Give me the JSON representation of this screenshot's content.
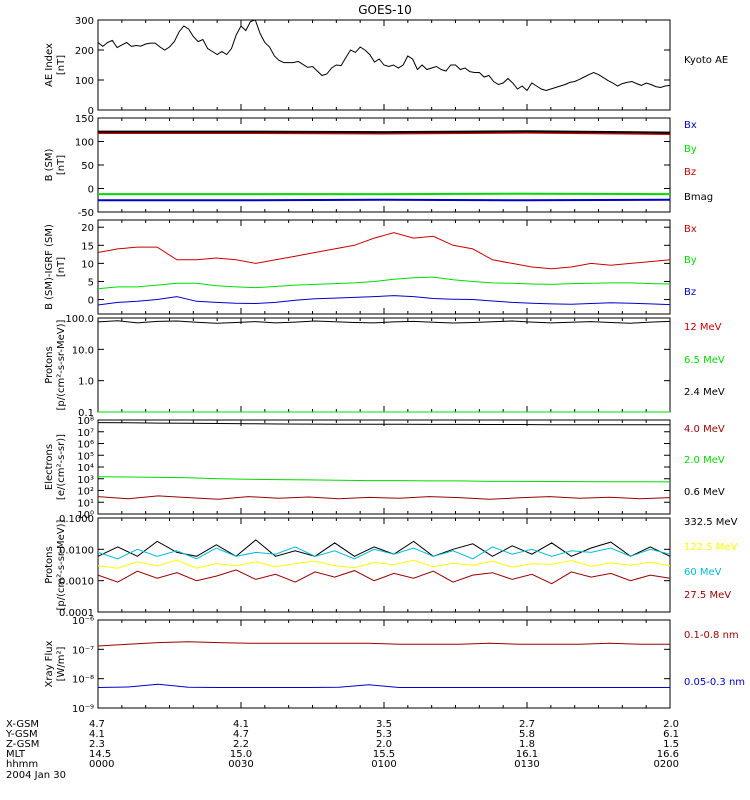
{
  "title": "GOES-10",
  "colors": {
    "black": "#000000",
    "red": "#cc0000",
    "darkred": "#990000",
    "green": "#00dd00",
    "blue": "#0000cc",
    "navy": "#0000aa",
    "yellow": "#ffff00",
    "cyan": "#00bbdd"
  },
  "footer": {
    "rows": [
      {
        "label": "X-GSM",
        "values": [
          "4.7",
          "4.1",
          "3.5",
          "2.7",
          "2.0"
        ]
      },
      {
        "label": "Y-GSM",
        "values": [
          "4.1",
          "4.7",
          "5.3",
          "5.8",
          "6.1"
        ]
      },
      {
        "label": "Z-GSM",
        "values": [
          "2.3",
          "2.2",
          "2.0",
          "1.8",
          "1.5"
        ]
      },
      {
        "label": "MLT",
        "values": [
          "14.5",
          "15.0",
          "15.5",
          "16.1",
          "16.6"
        ]
      },
      {
        "label": "hhmm",
        "values": [
          "0000",
          "0030",
          "0100",
          "0130",
          "0200"
        ]
      }
    ],
    "date": "2004 Jan 30"
  },
  "chart_data": [
    {
      "type": "line",
      "id": "ae",
      "ylabel_lines": [
        "AE Index",
        "[nT]"
      ],
      "ylim": [
        0,
        300
      ],
      "log": false,
      "yticks": [
        0,
        100,
        200,
        300
      ],
      "ytick_labels": [
        "0",
        "100",
        "200",
        "300"
      ],
      "x_range": [
        0,
        120
      ],
      "series": [
        {
          "name": "Kyoto AE",
          "color": "black",
          "values": [
            225,
            212,
            225,
            232,
            208,
            217,
            225,
            212,
            215,
            213,
            220,
            223,
            223,
            210,
            200,
            210,
            228,
            260,
            280,
            270,
            245,
            228,
            235,
            205,
            195,
            185,
            195,
            185,
            205,
            250,
            280,
            265,
            295,
            300,
            255,
            225,
            210,
            180,
            165,
            158,
            158,
            158,
            162,
            152,
            142,
            145,
            130,
            115,
            120,
            140,
            150,
            148,
            175,
            200,
            192,
            210,
            200,
            185,
            160,
            170,
            150,
            145,
            150,
            140,
            150,
            180,
            170,
            135,
            150,
            135,
            140,
            145,
            135,
            130,
            150,
            150,
            135,
            140,
            128,
            125,
            125,
            110,
            115,
            95,
            85,
            90,
            105,
            90,
            70,
            80,
            65,
            90,
            80,
            70,
            65,
            70,
            75,
            80,
            85,
            92,
            95,
            102,
            110,
            118,
            125,
            118,
            108,
            98,
            90,
            80,
            88,
            92,
            95,
            88,
            82,
            90,
            85,
            78,
            75,
            80,
            82
          ]
        }
      ]
    },
    {
      "type": "line",
      "id": "b-sm",
      "ylabel_lines": [
        "B (SM)",
        "[nT]"
      ],
      "ylim": [
        -50,
        150
      ],
      "log": false,
      "yticks": [
        -50,
        0,
        50,
        100,
        150
      ],
      "ytick_labels": [
        "-50",
        "0",
        "50",
        "100",
        "150"
      ],
      "x_range": [
        0,
        120
      ],
      "series": [
        {
          "name": "Bx",
          "color": "blue",
          "values": [
            -25,
            -25,
            -24,
            -25,
            -24
          ]
        },
        {
          "name": "By",
          "color": "green",
          "values": [
            -12,
            -12,
            -12,
            -11,
            -12
          ]
        },
        {
          "name": "Bz",
          "color": "red",
          "values": [
            118,
            118,
            117,
            119,
            116
          ]
        },
        {
          "name": "Bmag",
          "color": "black",
          "values": [
            121,
            121,
            120,
            122,
            119
          ]
        }
      ]
    },
    {
      "type": "line",
      "id": "b-sm-igrf",
      "ylabel_lines": [
        "B (SM)-IGRF (SM)",
        "[nT]"
      ],
      "ylim": [
        -4,
        22
      ],
      "log": false,
      "yticks": [
        0,
        5,
        10,
        15,
        20
      ],
      "ytick_labels": [
        "0",
        "5",
        "10",
        "15",
        "20"
      ],
      "x_range": [
        0,
        120
      ],
      "series": [
        {
          "name": "Bx",
          "color": "red",
          "values": [
            13,
            14,
            14.5,
            14.5,
            11,
            11,
            11.5,
            11,
            10,
            11,
            12,
            13,
            14,
            15,
            17,
            18.5,
            17,
            17.5,
            15,
            14,
            11,
            10,
            9,
            8.5,
            9,
            10,
            9.5,
            10,
            10.5,
            11
          ]
        },
        {
          "name": "By",
          "color": "green",
          "values": [
            3,
            3.5,
            3.5,
            4,
            4.5,
            4.5,
            3.8,
            3.5,
            3.3,
            3.6,
            4,
            4.2,
            4.4,
            4.6,
            5,
            5.6,
            6,
            6.2,
            5.5,
            5,
            4.6,
            4.5,
            4.3,
            4.2,
            4.4,
            4.5,
            4.6,
            4.6,
            4.4,
            4.3
          ]
        },
        {
          "name": "Bz",
          "color": "blue",
          "values": [
            -1.5,
            -0.8,
            -0.5,
            0,
            0.8,
            -0.5,
            -0.8,
            -1,
            -1.1,
            -0.8,
            -0.2,
            0.2,
            0.4,
            0.6,
            0.8,
            1.1,
            0.8,
            0.3,
            0.1,
            0,
            -0.4,
            -0.8,
            -1,
            -1.2,
            -1.3,
            -1.1,
            -0.9,
            -1,
            -1.2,
            -1.4
          ]
        }
      ]
    },
    {
      "type": "line",
      "id": "protons-low",
      "ylabel_lines": [
        "Protons",
        "[p/(cm²-s-sr-MeV)]"
      ],
      "ylim": [
        0.1,
        100
      ],
      "log": true,
      "yticks": [
        0.1,
        1,
        10,
        100
      ],
      "ytick_labels": [
        "0.1",
        "1.0",
        "10.0",
        "100.0"
      ],
      "x_range": [
        0,
        120
      ],
      "series": [
        {
          "name": "12 MeV",
          "color": "red",
          "values": []
        },
        {
          "name": "6.5 MeV",
          "color": "green",
          "values": [
            0.1,
            0.1,
            0.1,
            0.1,
            0.1,
            0.1,
            0.1,
            0.1,
            0.1,
            0.1,
            0.1,
            0.1,
            0.1,
            0.1,
            0.1,
            0.1,
            0.1,
            0.1,
            0.1,
            0.1,
            0.1,
            0.1,
            0.1,
            0.1,
            0.1
          ]
        },
        {
          "name": "2.4 MeV",
          "color": "black",
          "values": [
            75,
            82,
            70,
            78,
            80,
            73,
            68,
            72,
            77,
            70,
            74,
            80,
            76,
            72,
            70,
            75,
            78,
            73,
            69,
            72,
            76,
            80,
            74,
            70,
            73,
            77,
            72,
            68,
            74,
            78
          ]
        }
      ]
    },
    {
      "type": "line",
      "id": "electrons",
      "ylabel_lines": [
        "Electrons",
        "[e/(cm²-s-sr)]"
      ],
      "ylim": [
        1,
        100000000
      ],
      "log": true,
      "yticks": [
        1,
        10,
        100,
        1000,
        10000,
        100000,
        1000000,
        10000000,
        100000000
      ],
      "ytick_labels": [
        "10⁰",
        "10¹",
        "10²",
        "10³",
        "10⁴",
        "10⁵",
        "10⁶",
        "10⁷",
        "10⁸"
      ],
      "x_range": [
        0,
        120
      ],
      "series": [
        {
          "name": "4.0 MeV",
          "color": "darkred",
          "values": [
            30,
            20,
            35,
            25,
            18,
            30,
            22,
            28,
            20,
            26,
            22,
            30,
            25,
            18,
            24,
            30,
            22,
            27,
            20,
            25
          ]
        },
        {
          "name": "2.0 MeV",
          "color": "green",
          "values": [
            1500,
            1400,
            1300,
            1200,
            1000,
            900,
            850,
            800,
            750,
            700,
            700,
            650,
            650,
            600,
            600,
            580,
            570,
            560,
            550,
            540
          ]
        },
        {
          "name": "0.6 MeV",
          "color": "black",
          "values": [
            60000000,
            58000000,
            55000000,
            52000000,
            50000000,
            48000000,
            46000000,
            45000000,
            44000000,
            43000000,
            43000000,
            42000000,
            42000000,
            41000000,
            41000000,
            40000000,
            40000000,
            40000000,
            39000000,
            39000000
          ]
        }
      ]
    },
    {
      "type": "line",
      "id": "protons-high",
      "ylabel_lines": [
        "Protons",
        "[p/(cm²-s-sr-MeV)]"
      ],
      "ylim": [
        0.0001,
        0.1
      ],
      "log": true,
      "yticks": [
        0.0001,
        0.001,
        0.01,
        0.1
      ],
      "ytick_labels": [
        "0.0001",
        "0.0010",
        "0.0100",
        "0.1000"
      ],
      "x_range": [
        0,
        120
      ],
      "series": [
        {
          "name": "332.5 MeV",
          "color": "black",
          "values": [
            0.006,
            0.012,
            0.006,
            0.018,
            0.008,
            0.006,
            0.014,
            0.006,
            0.02,
            0.006,
            0.009,
            0.006,
            0.016,
            0.006,
            0.012,
            0.007,
            0.018,
            0.006,
            0.01,
            0.015,
            0.006,
            0.013,
            0.007,
            0.016,
            0.006,
            0.011,
            0.017,
            0.006,
            0.012,
            0.006
          ]
        },
        {
          "name": "122.5 MeV",
          "color": "yellow",
          "values": [
            0.003,
            0.0025,
            0.004,
            0.003,
            0.0045,
            0.0025,
            0.0035,
            0.003,
            0.004,
            0.0028,
            0.0035,
            0.0042,
            0.003,
            0.0026,
            0.0038,
            0.0032,
            0.0045,
            0.0028,
            0.0036,
            0.0031,
            0.0042,
            0.0027,
            0.0035,
            0.0033,
            0.0044,
            0.0029,
            0.0037,
            0.0031,
            0.0039,
            0.003
          ]
        },
        {
          "name": "60 MeV",
          "color": "cyan",
          "values": [
            0.008,
            0.005,
            0.01,
            0.006,
            0.009,
            0.005,
            0.011,
            0.006,
            0.008,
            0.007,
            0.012,
            0.006,
            0.009,
            0.005,
            0.01,
            0.007,
            0.011,
            0.006,
            0.009,
            0.005,
            0.012,
            0.007,
            0.01,
            0.006,
            0.009,
            0.008,
            0.011,
            0.006,
            0.01,
            0.007
          ]
        },
        {
          "name": "27.5 MeV",
          "color": "darkred",
          "values": [
            0.0015,
            0.0009,
            0.002,
            0.0012,
            0.0018,
            0.001,
            0.0014,
            0.0022,
            0.0011,
            0.0016,
            0.0009,
            0.0019,
            0.0013,
            0.0021,
            0.001,
            0.0017,
            0.0012,
            0.002,
            0.0009,
            0.0015,
            0.0018,
            0.0011,
            0.0016,
            0.0008,
            0.0019,
            0.0013,
            0.0017,
            0.001,
            0.0015,
            0.0012
          ]
        }
      ]
    },
    {
      "type": "line",
      "id": "xray",
      "ylabel_lines": [
        "Xray Flux",
        "[W/m²]"
      ],
      "ylim": [
        1e-09,
        1e-06
      ],
      "log": true,
      "yticks": [
        1e-09,
        1e-08,
        1e-07,
        1e-06
      ],
      "ytick_labels": [
        "10⁻⁹",
        "10⁻⁸",
        "10⁻⁷",
        "10⁻⁶"
      ],
      "x_range": [
        0,
        120
      ],
      "series": [
        {
          "name": "0.1-0.8 nm",
          "color": "darkred",
          "values": [
            1.3e-07,
            1.5e-07,
            1.7e-07,
            1.8e-07,
            1.7e-07,
            1.6e-07,
            1.6e-07,
            1.6e-07,
            1.6e-07,
            1.6e-07,
            1.5e-07,
            1.5e-07,
            1.5e-07,
            1.6e-07,
            1.5e-07,
            1.5e-07,
            1.5e-07,
            1.6e-07,
            1.5e-07,
            1.5e-07
          ]
        },
        {
          "name": "0.05-0.3 nm",
          "color": "blue",
          "values": [
            5e-09,
            5.2e-09,
            6.5e-09,
            5.1e-09,
            5e-09,
            5e-09,
            5e-09,
            5e-09,
            5.1e-09,
            6.2e-09,
            5e-09,
            5e-09,
            5e-09,
            5e-09,
            5e-09,
            5e-09,
            5e-09,
            5e-09,
            5e-09,
            5e-09
          ]
        }
      ]
    }
  ]
}
